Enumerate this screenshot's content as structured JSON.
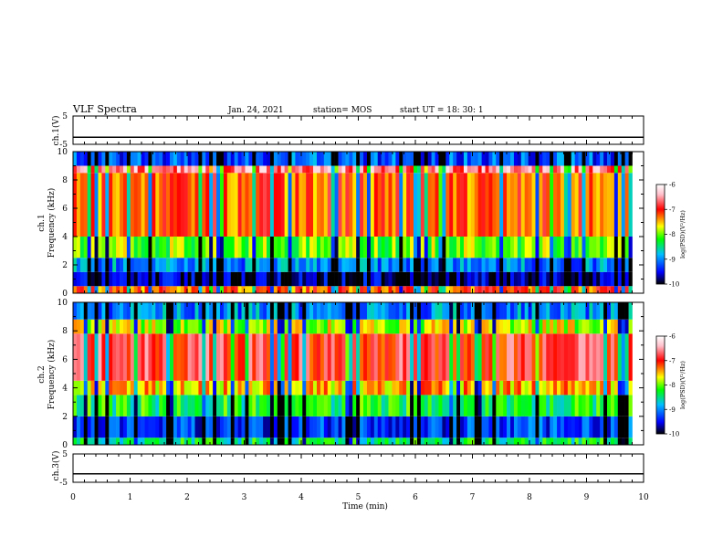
{
  "header": {
    "title": "VLF Spectra",
    "date": "Jan. 24, 2021",
    "station": "station= MOS",
    "start": "start  UT =   18: 30: 1"
  },
  "chart_data": [
    {
      "type": "line",
      "panel": "ch1-voltage",
      "ylabel": "ch.1(V)",
      "yticks": [
        "5",
        "-5"
      ],
      "ylim": [
        -5,
        5
      ],
      "x": [
        0,
        10
      ],
      "values": [
        -2.5,
        -2.5
      ]
    },
    {
      "type": "heatmap",
      "panel": "ch1-spectrogram",
      "ylabel_top": "ch.1",
      "ylabel": "Frequency (kHz)",
      "yticks": [
        "0",
        "2",
        "4",
        "6",
        "8",
        "10"
      ],
      "ylim": [
        0,
        10
      ],
      "xlim": [
        0,
        9.8
      ],
      "band_rows": [
        {
          "f0": 0.0,
          "f1": 0.5,
          "level": -7.2
        },
        {
          "f0": 0.5,
          "f1": 1.5,
          "level": -9.7
        },
        {
          "f0": 1.5,
          "f1": 2.5,
          "level": -9.0
        },
        {
          "f0": 2.5,
          "f1": 4.0,
          "level": -8.0
        },
        {
          "f0": 4.0,
          "f1": 8.5,
          "level": -7.2
        },
        {
          "f0": 8.5,
          "f1": 9.0,
          "level": -6.6
        },
        {
          "f0": 9.0,
          "f1": 10.0,
          "level": -9.2
        }
      ],
      "colorbar": {
        "label": "log(PSD)(V²/Hz)",
        "ticks": [
          "-6",
          "-7",
          "-8",
          "-9",
          "-10"
        ],
        "range": [
          -10,
          -6
        ],
        "colors": [
          "#000000",
          "#0000ff",
          "#00bfff",
          "#00ff00",
          "#ffff00",
          "#ff0000",
          "#ffc0cb",
          "#ffffff"
        ]
      }
    },
    {
      "type": "heatmap",
      "panel": "ch2-spectrogram",
      "ylabel_top": "ch.2",
      "ylabel": "Frequency (kHz)",
      "yticks": [
        "0",
        "2",
        "4",
        "6",
        "8",
        "10"
      ],
      "ylim": [
        0,
        10
      ],
      "xlim": [
        0,
        9.8
      ],
      "band_rows": [
        {
          "f0": 0.0,
          "f1": 0.5,
          "level": -8.4
        },
        {
          "f0": 0.5,
          "f1": 2.0,
          "level": -9.3
        },
        {
          "f0": 2.0,
          "f1": 3.5,
          "level": -8.3
        },
        {
          "f0": 3.5,
          "f1": 4.5,
          "level": -7.5
        },
        {
          "f0": 4.5,
          "f1": 7.8,
          "level": -6.9
        },
        {
          "f0": 7.8,
          "f1": 8.8,
          "level": -7.8
        },
        {
          "f0": 8.8,
          "f1": 10.0,
          "level": -9.0
        }
      ],
      "colorbar": {
        "label": "log(PSD)(V²/Hz)",
        "ticks": [
          "-6",
          "-7",
          "-8",
          "-9",
          "-10"
        ],
        "range": [
          -10,
          -6
        ],
        "colors": [
          "#000000",
          "#0000ff",
          "#00bfff",
          "#00ff00",
          "#ffff00",
          "#ff0000",
          "#ffc0cb",
          "#ffffff"
        ]
      }
    },
    {
      "type": "line",
      "panel": "ch3-voltage",
      "ylabel": "ch.3(V)",
      "yticks": [
        "5",
        "-5"
      ],
      "ylim": [
        -5,
        5
      ],
      "x": [
        0,
        10
      ],
      "values": [
        -2,
        -2
      ]
    }
  ],
  "xaxis": {
    "label": "Time (min)",
    "ticks": [
      "0",
      "1",
      "2",
      "3",
      "4",
      "5",
      "6",
      "7",
      "8",
      "9",
      "10"
    ],
    "range": [
      0,
      10
    ]
  }
}
